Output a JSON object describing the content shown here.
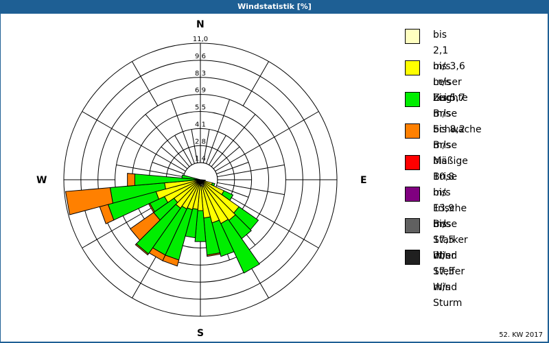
{
  "header": {
    "title": "Windstatistik [%]"
  },
  "footer": {
    "period": "52. KW 2017"
  },
  "compass": {
    "n": "N",
    "e": "E",
    "s": "S",
    "w": "W"
  },
  "legend": [
    {
      "range": "bis 2,1 m/s",
      "name": "Leiser Zug",
      "color": "#ffffc0"
    },
    {
      "range": "bis 3,6 m/s",
      "name": "Leichte Brise",
      "color": "#ffff00"
    },
    {
      "range": "bis 5,7 m/s",
      "name": "Schwache Brise",
      "color": "#00ee00"
    },
    {
      "range": "bis 8,2 m/s",
      "name": "Mäßige Brise",
      "color": "#ff8000"
    },
    {
      "range": "bis 10,8 m/s",
      "name": "Frische Brise",
      "color": "#ff0000"
    },
    {
      "range": "bis 13,9 m/s",
      "name": "Starker Wind",
      "color": "#800080"
    },
    {
      "range": "bis 17,5 m/s",
      "name": "Steifer Wind",
      "color": "#606060"
    },
    {
      "range": "über 17,5 m/s",
      "name": "Sturm",
      "color": "#202020"
    }
  ],
  "chart_data": {
    "type": "polar-stacked-bar",
    "title": "Windstatistik [%]",
    "subtitle": "52. KW 2017",
    "radial_ticks": [
      "1,4",
      "2,8",
      "4,1",
      "5,5",
      "6,9",
      "8,3",
      "9,6",
      "11,0"
    ],
    "radial_range": [
      0,
      11.0
    ],
    "directions_deg": [
      0,
      10,
      20,
      30,
      40,
      50,
      60,
      70,
      80,
      90,
      100,
      110,
      120,
      130,
      140,
      150,
      160,
      170,
      180,
      190,
      200,
      210,
      220,
      230,
      240,
      250,
      260,
      270,
      280,
      290,
      300,
      310,
      320,
      330,
      340,
      350
    ],
    "series": [
      {
        "name": "bis 2,1 m/s",
        "values": [
          0,
          0,
          0,
          0,
          0,
          0,
          0,
          0,
          0,
          0,
          0.1,
          0.2,
          0.3,
          0.3,
          0.4,
          0.5,
          0.6,
          0.5,
          0.5,
          0.4,
          0.3,
          0.3,
          0.3,
          0.2,
          0.2,
          0.2,
          0.2,
          0.1,
          0.1,
          0,
          0,
          0,
          0,
          0,
          0,
          0
        ]
      },
      {
        "name": "bis 3,6 m/s",
        "values": [
          0,
          0,
          0,
          0,
          0,
          0,
          0,
          0,
          0,
          0,
          0.3,
          0.8,
          1.8,
          3.5,
          3.6,
          3.4,
          3.0,
          2.6,
          2.0,
          2.0,
          2.2,
          2.3,
          2.5,
          2.4,
          3.0,
          3.5,
          2.7,
          0.3,
          0.2,
          0,
          0,
          0,
          0,
          0,
          0,
          0
        ]
      },
      {
        "name": "bis 5,7 m/s",
        "values": [
          0,
          0,
          0,
          0,
          0,
          0,
          0,
          0,
          0,
          0,
          0,
          0.2,
          0.8,
          1.9,
          1.8,
          4.4,
          2.8,
          3.0,
          2.5,
          2.3,
          4.2,
          4.1,
          4.5,
          2.0,
          1.3,
          4.0,
          4.4,
          4.9,
          1.2,
          0,
          0,
          0,
          0,
          0,
          0,
          0
        ]
      },
      {
        "name": "bis 8,2 m/s",
        "values": [
          0,
          0,
          0,
          0,
          0,
          0,
          0,
          0,
          0,
          0,
          0,
          0,
          0,
          0,
          0,
          0,
          0,
          0.1,
          0,
          0,
          0.5,
          0.5,
          0.1,
          2.3,
          0.1,
          0.7,
          3.6,
          0.6,
          0,
          0,
          0,
          0,
          0,
          0,
          0,
          0
        ]
      },
      {
        "name": "bis 10,8 m/s",
        "values": [
          0,
          0,
          0,
          0,
          0,
          0,
          0,
          0,
          0,
          0,
          0,
          0,
          0,
          0,
          0,
          0,
          0,
          0,
          0,
          0,
          0,
          0,
          0,
          0,
          0,
          0,
          0,
          0,
          0,
          0,
          0,
          0,
          0,
          0,
          0,
          0
        ]
      },
      {
        "name": "bis 13,9 m/s",
        "values": [
          0,
          0,
          0,
          0,
          0,
          0,
          0,
          0,
          0,
          0,
          0,
          0,
          0,
          0,
          0,
          0,
          0,
          0,
          0,
          0,
          0,
          0,
          0,
          0,
          0,
          0,
          0,
          0,
          0,
          0,
          0,
          0,
          0,
          0,
          0,
          0
        ]
      },
      {
        "name": "bis 17,5 m/s",
        "values": [
          0,
          0,
          0,
          0,
          0,
          0,
          0,
          0,
          0,
          0,
          0,
          0,
          0,
          0,
          0,
          0,
          0,
          0,
          0,
          0,
          0,
          0,
          0,
          0,
          0,
          0,
          0,
          0,
          0,
          0,
          0,
          0,
          0,
          0,
          0,
          0
        ]
      },
      {
        "name": "über 17,5 m/s",
        "values": [
          0,
          0,
          0,
          0,
          0,
          0,
          0,
          0,
          0,
          0,
          0,
          0,
          0,
          0,
          0,
          0,
          0,
          0,
          0,
          0,
          0,
          0,
          0,
          0,
          0,
          0,
          0,
          0,
          0,
          0,
          0,
          0,
          0,
          0,
          0,
          0
        ]
      }
    ],
    "legend_position": "right",
    "grid": true
  }
}
